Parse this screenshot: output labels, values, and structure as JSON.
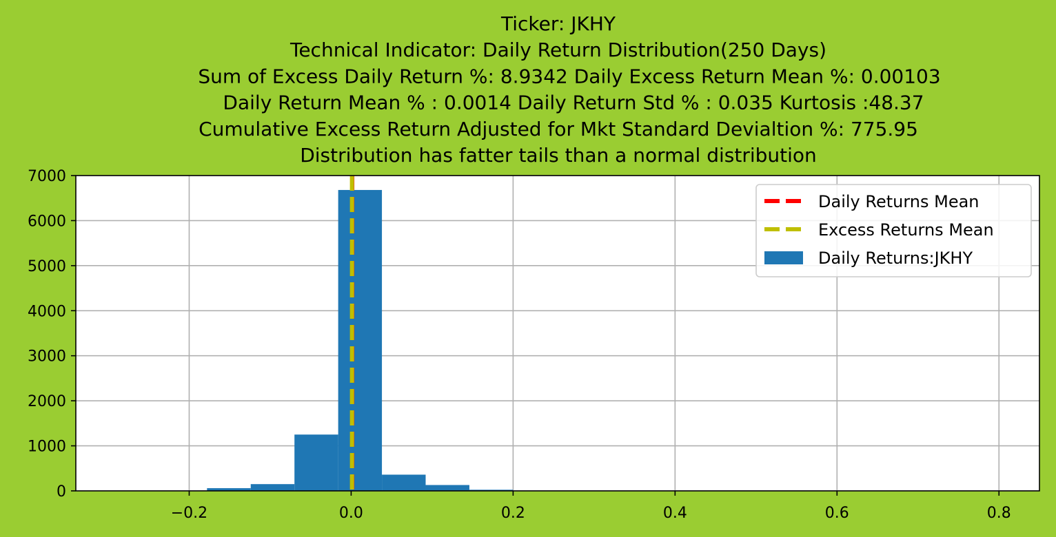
{
  "chart_data": {
    "type": "bar",
    "title_lines": [
      "Ticker: JKHY",
      "Technical Indicator: Daily Return Distribution(250 Days)",
      "Sum of Excess Daily Return %: 8.9342   Daily Excess Return Mean %: 0.00103",
      "Daily Return Mean % : 0.0014    Daily Return Std % : 0.035  Kurtosis :48.37",
      "Cumulative Excess Return Adjusted for Mkt Standard Devialtion %: 775.95",
      "Distribution has fatter tails than a normal distribution"
    ],
    "xlim": [
      -0.34,
      0.85
    ],
    "ylim": [
      0,
      7000
    ],
    "x_ticks": [
      -0.2,
      0.0,
      0.2,
      0.4,
      0.6,
      0.8
    ],
    "x_tick_labels": [
      "−0.2",
      "0.0",
      "0.2",
      "0.4",
      "0.6",
      "0.8"
    ],
    "y_ticks": [
      0,
      1000,
      2000,
      3000,
      4000,
      5000,
      6000,
      7000
    ],
    "y_tick_labels": [
      "0",
      "1000",
      "2000",
      "3000",
      "4000",
      "5000",
      "6000",
      "7000"
    ],
    "grid": true,
    "bars": [
      {
        "x0": -0.178,
        "x1": -0.124,
        "value": 60
      },
      {
        "x0": -0.124,
        "x1": -0.07,
        "value": 150
      },
      {
        "x0": -0.07,
        "x1": -0.016,
        "value": 1250
      },
      {
        "x0": -0.016,
        "x1": 0.038,
        "value": 6680
      },
      {
        "x0": 0.038,
        "x1": 0.092,
        "value": 360
      },
      {
        "x0": 0.092,
        "x1": 0.146,
        "value": 130
      },
      {
        "x0": 0.146,
        "x1": 0.2,
        "value": 25
      },
      {
        "x0": 0.2,
        "x1": 0.254,
        "value": 5
      },
      {
        "x0": 0.254,
        "x1": 0.308,
        "value": 2
      }
    ],
    "mean_lines": [
      {
        "name": "Daily Returns Mean",
        "x": 0.0014,
        "color": "#ff0000"
      },
      {
        "name": "Excess Returns Mean",
        "x": 0.00103,
        "color": "#bfbf00"
      }
    ],
    "series_name": "Daily Returns:JKHY",
    "bar_color": "#1f77b4",
    "legend_placement": "top-right",
    "legend": [
      {
        "label": "Daily Returns Mean",
        "kind": "dashed",
        "color": "#ff0000"
      },
      {
        "label": "Excess Returns Mean",
        "kind": "dashed",
        "color": "#bfbf00"
      },
      {
        "label": "Daily Returns:JKHY",
        "kind": "patch",
        "color": "#1f77b4"
      }
    ]
  }
}
